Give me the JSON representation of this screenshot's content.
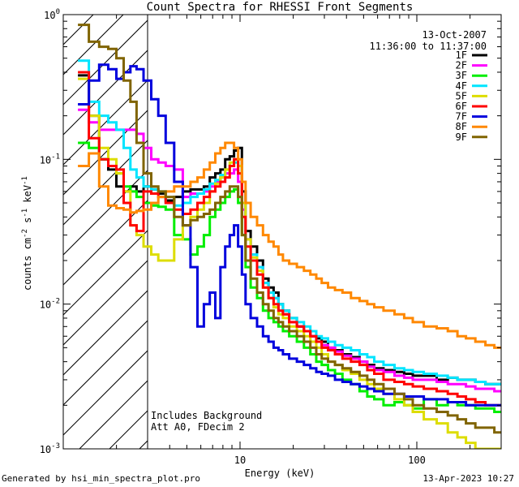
{
  "chart_data": {
    "type": "line",
    "title": "Count Spectra for RHESSI Front Segments",
    "xlabel": "Energy (keV)",
    "ylabel_base": "counts cm",
    "ylabel_sup1": "-2",
    "ylabel_mid": " s",
    "ylabel_sup2": "-1",
    "ylabel_end": " keV",
    "ylabel_sup3": "-1",
    "xscale": "log",
    "yscale": "log",
    "xlim": [
      1.0,
      300.0
    ],
    "ylim": [
      0.001,
      1.0
    ],
    "x_ticks": [
      {
        "value": 10,
        "label": "10"
      },
      {
        "value": 100,
        "label": "100"
      }
    ],
    "y_ticks": [
      {
        "value": 0.001,
        "base": "10",
        "exp": "-3"
      },
      {
        "value": 0.01,
        "base": "10",
        "exp": "-2"
      },
      {
        "value": 0.1,
        "base": "10",
        "exp": "-1"
      },
      {
        "value": 1.0,
        "base": "10",
        "exp": "0"
      }
    ],
    "date": "13-Oct-2007",
    "time_range": "11:36:00 to 11:37:00",
    "annotation_line1": "Includes Background",
    "annotation_line2": "Att A0, FDecim 2",
    "shaded_below_energy": 3.0,
    "series": [
      {
        "name": "1F",
        "color": "#000000",
        "x": [
          1.3,
          1.5,
          1.7,
          1.9,
          2.1,
          2.3,
          2.5,
          2.7,
          3.0,
          3.3,
          3.6,
          4.0,
          4.5,
          5.0,
          5.5,
          6.0,
          6.5,
          7.0,
          7.5,
          8.0,
          8.5,
          9.0,
          9.5,
          10.0,
          10.5,
          11.0,
          12,
          13,
          14,
          15,
          16,
          17,
          18,
          20,
          22,
          24,
          26,
          28,
          30,
          33,
          36,
          40,
          45,
          50,
          55,
          60,
          70,
          80,
          90,
          100,
          120,
          140,
          160,
          180,
          200,
          230,
          260,
          290
        ],
        "y": [
          0.38,
          0.2,
          0.1,
          0.085,
          0.065,
          0.06,
          0.065,
          0.06,
          0.065,
          0.062,
          0.058,
          0.052,
          0.055,
          0.06,
          0.062,
          0.062,
          0.065,
          0.075,
          0.08,
          0.085,
          0.1,
          0.105,
          0.115,
          0.12,
          0.06,
          0.032,
          0.025,
          0.02,
          0.015,
          0.013,
          0.012,
          0.01,
          0.009,
          0.008,
          0.007,
          0.0065,
          0.006,
          0.0058,
          0.0055,
          0.005,
          0.0048,
          0.0045,
          0.0043,
          0.004,
          0.0038,
          0.0036,
          0.0035,
          0.0034,
          0.0033,
          0.0032,
          0.0032,
          0.003,
          0.0031,
          0.003,
          0.003,
          0.0029,
          0.0028,
          0.0028
        ]
      },
      {
        "name": "2F",
        "color": "#ff00ff",
        "x": [
          1.3,
          1.5,
          1.7,
          1.9,
          2.1,
          2.3,
          2.5,
          2.7,
          3.0,
          3.3,
          3.6,
          4.0,
          4.5,
          5.0,
          5.5,
          6.0,
          6.5,
          7.0,
          7.5,
          8.0,
          8.5,
          9.0,
          9.5,
          10.0,
          10.5,
          11.0,
          12,
          13,
          14,
          15,
          16,
          17,
          18,
          20,
          22,
          24,
          26,
          28,
          30,
          33,
          36,
          40,
          45,
          50,
          55,
          60,
          70,
          80,
          90,
          100,
          120,
          140,
          160,
          180,
          200,
          230,
          260,
          290
        ],
        "y": [
          0.22,
          0.18,
          0.16,
          0.16,
          0.16,
          0.16,
          0.16,
          0.15,
          0.12,
          0.1,
          0.095,
          0.09,
          0.085,
          0.055,
          0.058,
          0.058,
          0.06,
          0.065,
          0.07,
          0.075,
          0.08,
          0.08,
          0.085,
          0.07,
          0.045,
          0.028,
          0.022,
          0.018,
          0.014,
          0.012,
          0.011,
          0.009,
          0.0085,
          0.0075,
          0.007,
          0.0065,
          0.006,
          0.0055,
          0.0052,
          0.005,
          0.0047,
          0.0044,
          0.0042,
          0.004,
          0.0037,
          0.0035,
          0.0034,
          0.0032,
          0.0031,
          0.003,
          0.003,
          0.0029,
          0.0028,
          0.0028,
          0.0027,
          0.0026,
          0.0026,
          0.0025
        ]
      },
      {
        "name": "3F",
        "color": "#00ee00",
        "x": [
          1.3,
          1.5,
          1.7,
          1.9,
          2.1,
          2.3,
          2.5,
          2.7,
          3.0,
          3.3,
          3.6,
          4.0,
          4.5,
          5.0,
          5.5,
          6.0,
          6.5,
          7.0,
          7.5,
          8.0,
          8.5,
          9.0,
          9.5,
          10.0,
          10.5,
          11.0,
          12,
          13,
          14,
          15,
          16,
          17,
          18,
          20,
          22,
          24,
          26,
          28,
          30,
          33,
          36,
          40,
          45,
          50,
          55,
          60,
          70,
          80,
          90,
          100,
          120,
          140,
          160,
          180,
          200,
          230,
          260,
          290
        ],
        "y": [
          0.13,
          0.12,
          0.1,
          0.09,
          0.08,
          0.065,
          0.06,
          0.055,
          0.05,
          0.048,
          0.047,
          0.045,
          0.03,
          0.028,
          0.022,
          0.025,
          0.03,
          0.04,
          0.045,
          0.05,
          0.055,
          0.06,
          0.062,
          0.05,
          0.03,
          0.018,
          0.013,
          0.011,
          0.009,
          0.008,
          0.0075,
          0.007,
          0.0065,
          0.006,
          0.0055,
          0.005,
          0.0045,
          0.004,
          0.0038,
          0.0035,
          0.0033,
          0.003,
          0.0028,
          0.0025,
          0.0023,
          0.0022,
          0.002,
          0.0021,
          0.002,
          0.0019,
          0.0022,
          0.002,
          0.0021,
          0.002,
          0.002,
          0.0019,
          0.0019,
          0.0018
        ]
      },
      {
        "name": "4F",
        "color": "#00e5ff",
        "x": [
          1.3,
          1.5,
          1.7,
          1.9,
          2.1,
          2.3,
          2.5,
          2.7,
          3.0,
          3.3,
          3.6,
          4.0,
          4.5,
          5.0,
          5.5,
          6.0,
          6.5,
          7.0,
          7.5,
          8.0,
          8.5,
          9.0,
          9.5,
          10.0,
          10.5,
          11.0,
          12,
          13,
          14,
          15,
          16,
          17,
          18,
          20,
          22,
          24,
          26,
          28,
          30,
          33,
          36,
          40,
          45,
          50,
          55,
          60,
          70,
          80,
          90,
          100,
          120,
          140,
          160,
          180,
          200,
          230,
          260,
          290
        ],
        "y": [
          0.48,
          0.25,
          0.2,
          0.18,
          0.16,
          0.12,
          0.085,
          0.075,
          0.065,
          0.062,
          0.06,
          0.05,
          0.048,
          0.05,
          0.055,
          0.058,
          0.062,
          0.068,
          0.072,
          0.078,
          0.085,
          0.09,
          0.095,
          0.09,
          0.05,
          0.028,
          0.022,
          0.018,
          0.014,
          0.012,
          0.011,
          0.01,
          0.009,
          0.008,
          0.0075,
          0.007,
          0.0065,
          0.006,
          0.0058,
          0.0055,
          0.0052,
          0.005,
          0.0048,
          0.0045,
          0.0043,
          0.004,
          0.0038,
          0.0036,
          0.0035,
          0.0034,
          0.0033,
          0.0032,
          0.0031,
          0.003,
          0.003,
          0.0029,
          0.0028,
          0.0028
        ]
      },
      {
        "name": "5F",
        "color": "#dddd00",
        "x": [
          1.3,
          1.5,
          1.7,
          1.9,
          2.1,
          2.3,
          2.5,
          2.7,
          3.0,
          3.3,
          3.6,
          4.0,
          4.5,
          5.0,
          5.5,
          6.0,
          6.5,
          7.0,
          7.5,
          8.0,
          8.5,
          9.0,
          9.5,
          10.0,
          10.5,
          11.0,
          12,
          13,
          14,
          15,
          16,
          17,
          18,
          20,
          22,
          24,
          26,
          28,
          30,
          33,
          36,
          40,
          45,
          50,
          55,
          60,
          70,
          80,
          90,
          100,
          120,
          140,
          160,
          180,
          200,
          230,
          260,
          290
        ],
        "y": [
          0.36,
          0.2,
          0.12,
          0.1,
          0.08,
          0.06,
          0.035,
          0.03,
          0.025,
          0.022,
          0.02,
          0.02,
          0.028,
          0.035,
          0.04,
          0.045,
          0.05,
          0.06,
          0.068,
          0.075,
          0.085,
          0.095,
          0.1,
          0.09,
          0.05,
          0.028,
          0.021,
          0.017,
          0.013,
          0.011,
          0.0095,
          0.0085,
          0.008,
          0.007,
          0.0065,
          0.006,
          0.0055,
          0.005,
          0.0045,
          0.004,
          0.0038,
          0.0035,
          0.0033,
          0.003,
          0.0028,
          0.0026,
          0.0024,
          0.0022,
          0.002,
          0.0018,
          0.0016,
          0.0015,
          0.0013,
          0.0012,
          0.0011,
          0.001,
          0.001,
          0.001
        ]
      },
      {
        "name": "6F",
        "color": "#ff0000",
        "x": [
          1.3,
          1.5,
          1.7,
          1.9,
          2.1,
          2.3,
          2.5,
          2.7,
          3.0,
          3.3,
          3.6,
          4.0,
          4.5,
          5.0,
          5.5,
          6.0,
          6.5,
          7.0,
          7.5,
          8.0,
          8.5,
          9.0,
          9.5,
          10.0,
          10.5,
          11.0,
          12,
          13,
          14,
          15,
          16,
          17,
          18,
          20,
          22,
          24,
          26,
          28,
          30,
          33,
          36,
          40,
          45,
          50,
          55,
          60,
          70,
          80,
          90,
          100,
          120,
          140,
          160,
          180,
          200,
          230,
          260,
          290
        ],
        "y": [
          0.4,
          0.14,
          0.1,
          0.09,
          0.085,
          0.05,
          0.035,
          0.032,
          0.06,
          0.058,
          0.055,
          0.05,
          0.045,
          0.042,
          0.045,
          0.05,
          0.055,
          0.06,
          0.065,
          0.07,
          0.075,
          0.09,
          0.1,
          0.08,
          0.04,
          0.025,
          0.02,
          0.016,
          0.013,
          0.011,
          0.01,
          0.009,
          0.0085,
          0.0075,
          0.007,
          0.0065,
          0.006,
          0.0055,
          0.005,
          0.0048,
          0.0045,
          0.0042,
          0.004,
          0.0038,
          0.0035,
          0.0033,
          0.003,
          0.0029,
          0.0028,
          0.0027,
          0.0026,
          0.0025,
          0.0024,
          0.0023,
          0.0022,
          0.0021,
          0.002,
          0.002
        ]
      },
      {
        "name": "7F",
        "color": "#0000dd",
        "x": [
          1.3,
          1.5,
          1.7,
          1.9,
          2.1,
          2.3,
          2.5,
          2.7,
          3.0,
          3.3,
          3.6,
          4.0,
          4.5,
          5.0,
          5.5,
          6.0,
          6.5,
          7.0,
          7.5,
          8.0,
          8.5,
          9.0,
          9.5,
          10.0,
          10.5,
          11.0,
          12,
          13,
          14,
          15,
          16,
          17,
          18,
          20,
          22,
          24,
          26,
          28,
          30,
          33,
          36,
          40,
          45,
          50,
          55,
          60,
          70,
          80,
          90,
          100,
          120,
          140,
          160,
          180,
          200,
          230,
          260,
          290
        ],
        "y": [
          0.24,
          0.35,
          0.45,
          0.42,
          0.36,
          0.4,
          0.44,
          0.42,
          0.35,
          0.26,
          0.2,
          0.13,
          0.07,
          0.035,
          0.018,
          0.007,
          0.01,
          0.012,
          0.008,
          0.018,
          0.025,
          0.03,
          0.035,
          0.025,
          0.016,
          0.01,
          0.008,
          0.007,
          0.006,
          0.0055,
          0.005,
          0.0048,
          0.0045,
          0.0042,
          0.004,
          0.0038,
          0.0036,
          0.0034,
          0.0033,
          0.0032,
          0.003,
          0.0029,
          0.0028,
          0.0027,
          0.0026,
          0.0025,
          0.0024,
          0.0024,
          0.0023,
          0.0023,
          0.0022,
          0.0022,
          0.0021,
          0.0021,
          0.002,
          0.002,
          0.002,
          0.002
        ]
      },
      {
        "name": "8F",
        "color": "#ff8800",
        "x": [
          1.3,
          1.5,
          1.7,
          1.9,
          2.1,
          2.3,
          2.5,
          2.7,
          3.0,
          3.3,
          3.6,
          4.0,
          4.5,
          5.0,
          5.5,
          6.0,
          6.5,
          7.0,
          7.5,
          8.0,
          8.5,
          9.0,
          9.5,
          10.0,
          10.5,
          11.0,
          12,
          13,
          14,
          15,
          16,
          17,
          18,
          20,
          22,
          24,
          26,
          28,
          30,
          33,
          36,
          40,
          45,
          50,
          55,
          60,
          70,
          80,
          90,
          100,
          120,
          140,
          160,
          180,
          200,
          230,
          260,
          290
        ],
        "y": [
          0.09,
          0.11,
          0.065,
          0.048,
          0.046,
          0.045,
          0.043,
          0.044,
          0.045,
          0.05,
          0.055,
          0.06,
          0.065,
          0.065,
          0.07,
          0.075,
          0.085,
          0.095,
          0.11,
          0.12,
          0.13,
          0.13,
          0.12,
          0.1,
          0.07,
          0.05,
          0.04,
          0.035,
          0.03,
          0.027,
          0.025,
          0.022,
          0.02,
          0.019,
          0.018,
          0.017,
          0.016,
          0.015,
          0.014,
          0.013,
          0.0125,
          0.012,
          0.011,
          0.0105,
          0.01,
          0.0095,
          0.009,
          0.0085,
          0.008,
          0.0075,
          0.007,
          0.0068,
          0.0065,
          0.006,
          0.0058,
          0.0055,
          0.0052,
          0.005
        ]
      },
      {
        "name": "9F",
        "color": "#806400",
        "x": [
          1.3,
          1.5,
          1.7,
          1.9,
          2.1,
          2.3,
          2.5,
          2.7,
          3.0,
          3.3,
          3.6,
          4.0,
          4.5,
          5.0,
          5.5,
          6.0,
          6.5,
          7.0,
          7.5,
          8.0,
          8.5,
          9.0,
          9.5,
          10.0,
          10.5,
          11.0,
          12,
          13,
          14,
          15,
          16,
          17,
          18,
          20,
          22,
          24,
          26,
          28,
          30,
          33,
          36,
          40,
          45,
          50,
          55,
          60,
          70,
          80,
          90,
          100,
          120,
          140,
          160,
          180,
          200,
          230,
          260,
          290
        ],
        "y": [
          0.85,
          0.65,
          0.6,
          0.58,
          0.5,
          0.35,
          0.25,
          0.13,
          0.08,
          0.065,
          0.06,
          0.055,
          0.04,
          0.035,
          0.038,
          0.04,
          0.042,
          0.045,
          0.05,
          0.055,
          0.06,
          0.065,
          0.065,
          0.055,
          0.03,
          0.02,
          0.015,
          0.012,
          0.01,
          0.009,
          0.008,
          0.0075,
          0.007,
          0.0065,
          0.006,
          0.0055,
          0.005,
          0.0045,
          0.0042,
          0.004,
          0.0038,
          0.0036,
          0.0034,
          0.0032,
          0.003,
          0.0028,
          0.0026,
          0.0024,
          0.0022,
          0.002,
          0.0019,
          0.0018,
          0.0017,
          0.0016,
          0.0015,
          0.0014,
          0.0014,
          0.0013
        ]
      }
    ]
  },
  "footer": {
    "generated_by": "Generated by hsi_min_spectra_plot.pro",
    "timestamp": "13-Apr-2023 10:27"
  }
}
